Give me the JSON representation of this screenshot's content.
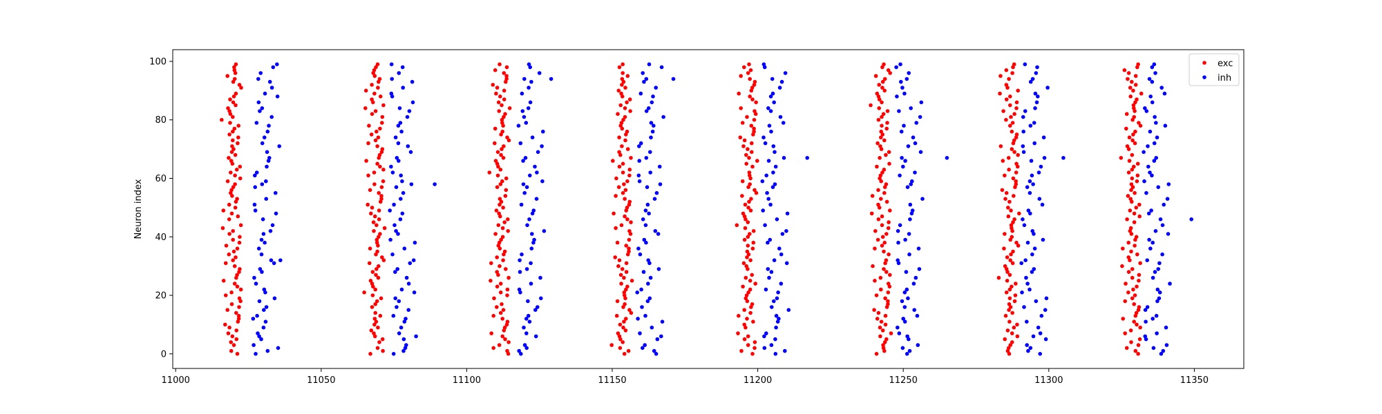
{
  "chart_data": {
    "type": "scatter",
    "title": "",
    "xlabel": "",
    "ylabel": "Neuron index",
    "xlim": [
      10999,
      11367
    ],
    "ylim": [
      -5,
      104
    ],
    "xticks": [
      11000,
      11050,
      11100,
      11150,
      11200,
      11250,
      11300,
      11350
    ],
    "yticks": [
      0,
      20,
      40,
      60,
      80,
      100
    ],
    "grid": false,
    "legend_position": "top-right",
    "marker": "dot",
    "bursts": [
      {
        "exc_center": 11020,
        "inh_center": 11030
      },
      {
        "exc_center": 11069,
        "inh_center": 11077
      },
      {
        "exc_center": 11112,
        "inh_center": 11121
      },
      {
        "exc_center": 11154,
        "inh_center": 11162
      },
      {
        "exc_center": 11197,
        "inh_center": 11205
      },
      {
        "exc_center": 11243,
        "inh_center": 11251
      },
      {
        "exc_center": 11287,
        "inh_center": 11294
      },
      {
        "exc_center": 11329,
        "inh_center": 11336
      }
    ],
    "series": [
      {
        "name": "exc",
        "color": "#ff0000",
        "neuron_indices": [
          0,
          1,
          2,
          3,
          4,
          5,
          6,
          7,
          8,
          9,
          10,
          11,
          12,
          13,
          14,
          15,
          16,
          17,
          18,
          19,
          20,
          21,
          22,
          23,
          24,
          25,
          26,
          27,
          28,
          29,
          30,
          31,
          32,
          33,
          34,
          35,
          36,
          37,
          38,
          39,
          40,
          41,
          42,
          43,
          44,
          45,
          46,
          47,
          48,
          49,
          50,
          51,
          52,
          53,
          54,
          55,
          56,
          57,
          58,
          59,
          60,
          61,
          62,
          63,
          64,
          65,
          66,
          67,
          68,
          69,
          70,
          71,
          72,
          73,
          74,
          75,
          76,
          77,
          78,
          79,
          80,
          81,
          82,
          83,
          84,
          85,
          86,
          87,
          88,
          89,
          90,
          91,
          92,
          93,
          94,
          95,
          96,
          97,
          98,
          99
        ],
        "x_offsets": [
          1.2,
          -3.8,
          -0.2,
          2.0,
          1.3,
          -2.2,
          0.4,
          -0.9,
          2.4,
          -1.3,
          0.3,
          -0.4,
          1.8,
          -2.1,
          2.8,
          -1.2,
          0.0,
          -2.8,
          1.5,
          -0.7,
          2.2,
          0.0,
          -1.6,
          0.7,
          -0.3,
          -1.5,
          2.3,
          0.4,
          -1.0,
          1.4,
          -2.4,
          0.6,
          -0.4,
          1.9,
          -1.1,
          0.9,
          -0.7,
          2.5,
          -1.7,
          0.2,
          -2.8,
          1.0,
          -0.5,
          -3.6,
          1.9,
          0.0,
          1.6,
          -0.8,
          2.1,
          -1.9,
          0.5,
          -0.2,
          1.2,
          -1.3,
          2.4,
          -0.5,
          0.9,
          -1.6,
          0.3,
          -2.6,
          -4.2,
          1.2,
          -0.9,
          -1.5,
          0.7,
          -2.2,
          1.9,
          -0.4,
          0.3,
          -1.8,
          -3.0,
          1.1,
          0.5,
          -0.3,
          -1.2,
          -3.5,
          0.5,
          1.4,
          -0.6,
          0.2,
          2.0,
          -1.5,
          0.8,
          -0.7,
          1.7,
          -1.1,
          0.1,
          -1.5,
          -2.0,
          1.1,
          -0.1,
          1.7,
          -0.8,
          0.7,
          -0.3,
          0.6,
          1.8,
          -0.6,
          0.8,
          -0.2
        ],
        "skip": [
          [
            2,
            45,
            90
          ],
          [
            3,
            15,
            60,
            80
          ],
          [
            18,
            55
          ],
          [
            40,
            72,
            97
          ],
          [
            8,
            28,
            63,
            85
          ],
          [
            33,
            66
          ],
          [
            12,
            51,
            77,
            93
          ],
          [
            6,
            44,
            69
          ]
        ]
      },
      {
        "name": "inh",
        "color": "#0000ff",
        "neuron_indices": [
          0,
          1,
          2,
          3,
          5,
          6,
          7,
          9,
          11,
          12,
          13,
          15,
          16,
          18,
          19,
          21,
          22,
          24,
          26,
          28,
          29,
          31,
          32,
          34,
          36,
          38,
          39,
          41,
          42,
          44,
          46,
          48,
          49,
          51,
          53,
          55,
          57,
          58,
          59,
          61,
          62,
          64,
          66,
          67,
          69,
          71,
          72,
          74,
          76,
          78,
          79,
          81,
          83,
          84,
          86,
          88,
          89,
          91,
          93,
          94,
          96,
          98,
          99
        ],
        "x_offsets": [
          -2.5,
          1.0,
          -1.2,
          3.0,
          -0.5,
          1.6,
          -2.8,
          4.0,
          -1.1,
          0.2,
          5.2,
          -2.1,
          0.8,
          -0.3,
          2.6,
          -3.2,
          1.3,
          0.4,
          -1.5,
          3.3,
          -0.6,
          1.9,
          -2.4,
          5.0,
          0.0,
          -1.3,
          2.2,
          -3.0,
          0.7,
          4.5,
          -1.8,
          1.4,
          -0.4,
          3.1,
          -2.6,
          0.2,
          5.6,
          -1.0,
          2.4,
          -2.9,
          0.9,
          -0.2,
          3.8,
          -1.6,
          1.1,
          -3.4,
          0.5,
          2.8,
          -0.8,
          4.3,
          -2.0,
          1.6,
          -0.5,
          3.5,
          -2.7,
          0.3,
          2.0,
          -1.4,
          4.8,
          -0.3,
          1.2,
          -2.2,
          0.6
        ],
        "skip": [
          [
            10,
            60
          ],
          [
            25,
            70
          ],
          [
            5,
            50,
            88
          ],
          [
            15,
            40
          ],
          [
            30,
            75
          ],
          [
            20,
            55,
            90
          ],
          [
            12,
            65
          ],
          [
            35,
            80
          ]
        ]
      }
    ],
    "inh_extra_points": [
      {
        "x": 11036,
        "y": 32
      },
      {
        "x": 11089,
        "y": 58
      },
      {
        "x": 11129,
        "y": 94
      },
      {
        "x": 11171,
        "y": 94
      },
      {
        "x": 11217,
        "y": 67
      },
      {
        "x": 11265,
        "y": 67
      },
      {
        "x": 11305,
        "y": 67
      },
      {
        "x": 11349,
        "y": 46
      }
    ]
  },
  "legend": {
    "exc_label": "exc",
    "inh_label": "inh"
  }
}
